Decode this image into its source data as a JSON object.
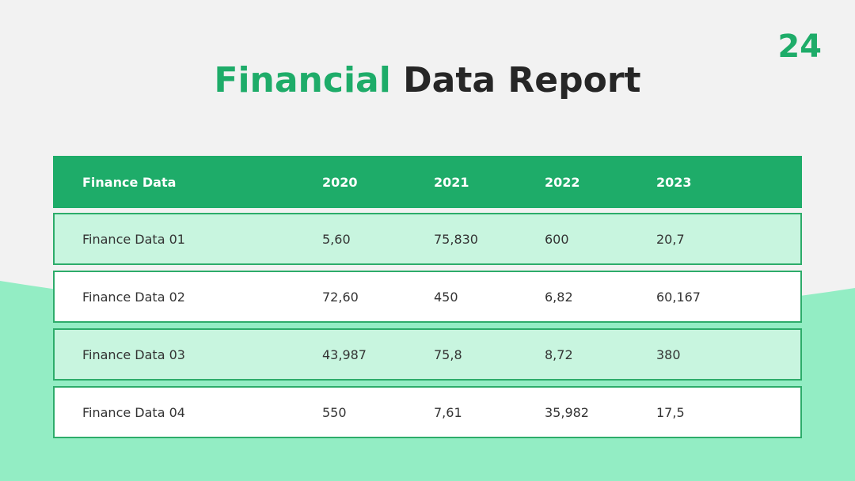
{
  "page_number": "24",
  "title": {
    "highlight": "Financial",
    "rest": "Data Report"
  },
  "table": {
    "header": [
      "Finance Data",
      "2020",
      "2021",
      "2022",
      "2023"
    ],
    "rows": [
      [
        "Finance Data 01",
        "5,60",
        "75,830",
        "600",
        "20,7"
      ],
      [
        "Finance Data 02",
        "72,60",
        "450",
        "6,82",
        "60,167"
      ],
      [
        "Finance Data 03",
        "43,987",
        "75,8",
        "8,72",
        "380"
      ],
      [
        "Finance Data 04",
        "550",
        "7,61",
        "35,982",
        "17,5"
      ]
    ]
  }
}
